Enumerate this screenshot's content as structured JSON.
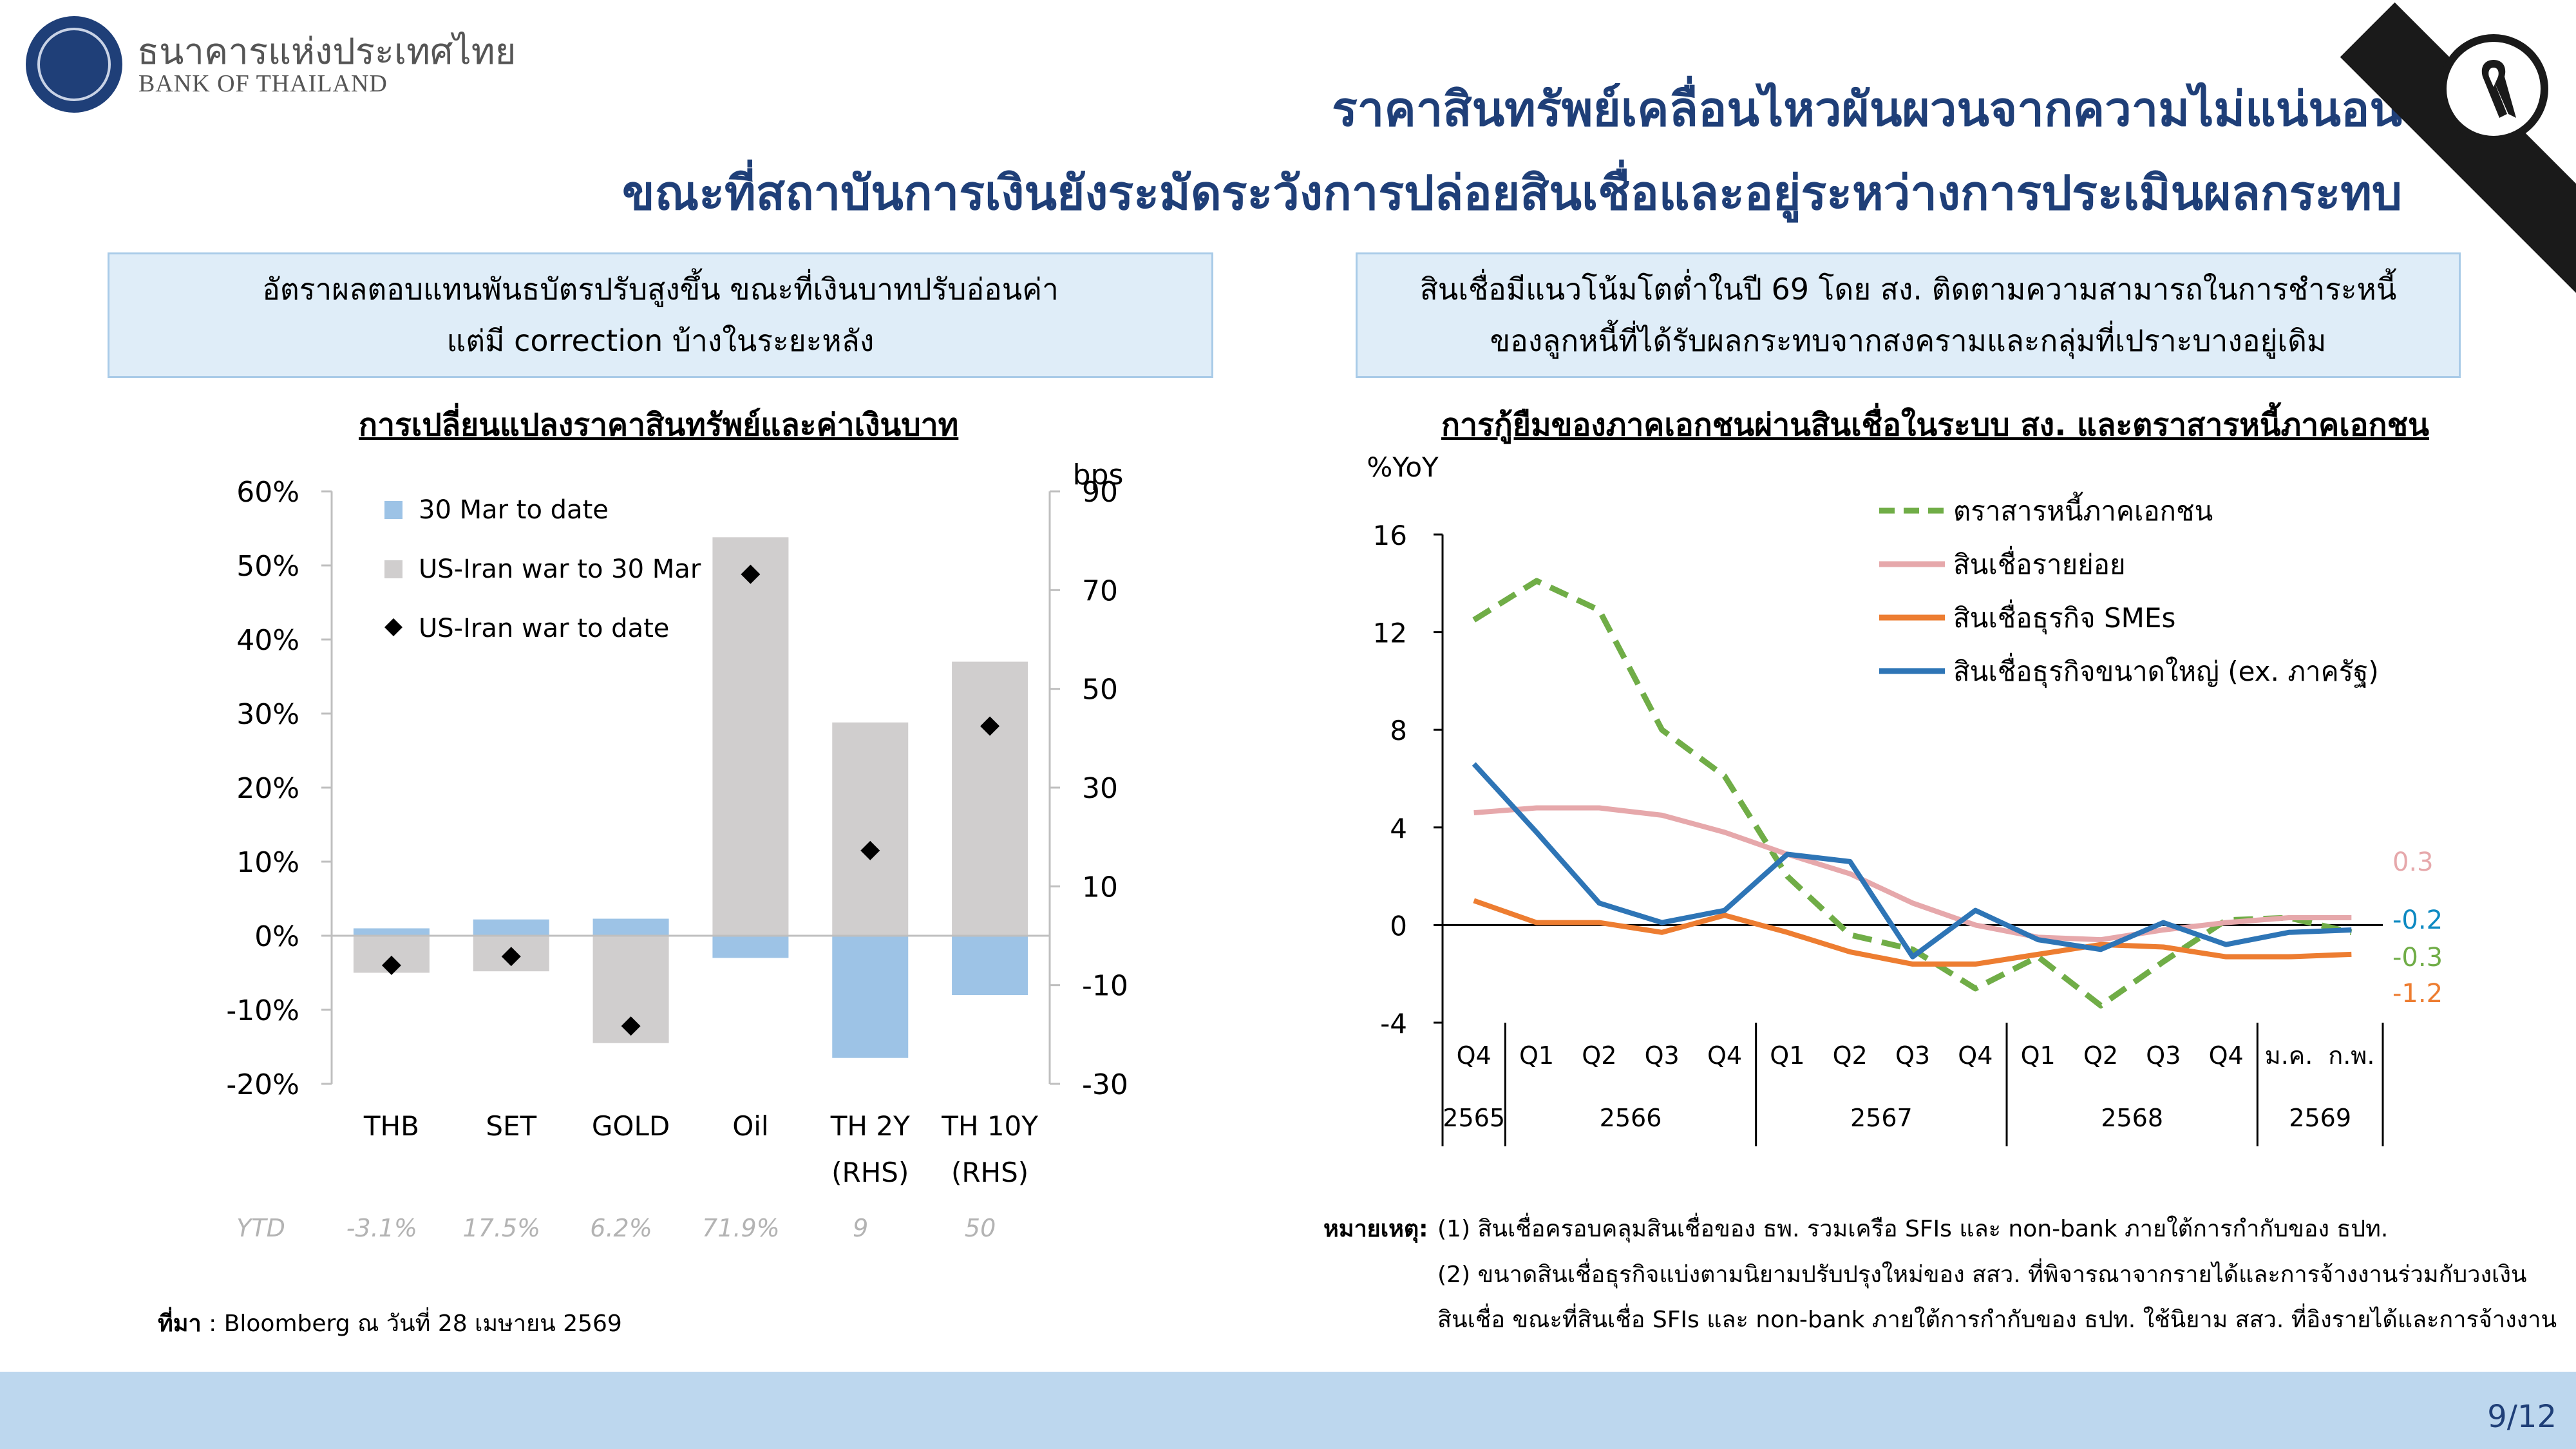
{
  "header": {
    "brand_th": "ธนาคารแห่งประเทศไทย",
    "brand_en": "BANK OF THAILAND",
    "title_line1": "ราคาสินทรัพย์เคลื่อนไหวผันผวนจากความไม่แน่นอน",
    "title_line2": "ขณะที่สถาบันการเงินยังระมัดระวังการปล่อยสินเชื่อและอยู่ระหว่างการประเมินผลกระทบ"
  },
  "left_panel": {
    "box_line1": "อัตราผลตอบแทนพันธบัตรปรับสูงขึ้น ขณะที่เงินบาทปรับอ่อนค่า",
    "box_line2": "แต่มี correction บ้างในระยะหลัง",
    "chart_title": "การเปลี่ยนแปลงราคาสินทรัพย์และค่าเงินบาท",
    "source_label": "ที่มา",
    "source_text": " : Bloomberg ณ วันที่ 28 เมษายน 2569"
  },
  "right_panel": {
    "box_line1": "สินเชื่อมีแนวโน้มโตต่ำในปี 69 โดย สง. ติดตามความสามารถในการชำระหนี้",
    "box_line2": "ของลูกหนี้ที่ได้รับผลกระทบจากสงครามและกลุ่มที่เปราะบางอยู่เดิม",
    "chart_title": "การกู้ยืมของภาคเอกชนผ่านสินเชื่อในระบบ สง. และตราสารหนี้ภาคเอกชน",
    "note_label": "หมายเหตุ:",
    "note1": "(1) สินเชื่อครอบคลุมสินเชื่อของ ธพ. รวมเครือ SFIs และ non-bank ภายใต้การกำกับของ ธปท.",
    "note2": "(2) ขนาดสินเชื่อธุรกิจแบ่งตามนิยามปรับปรุงใหม่ของ สสว. ที่พิจารณาจากรายได้และการจ้างงานร่วมกับวงเงิน",
    "note3": "สินเชื่อ ขณะที่สินเชื่อ SFIs และ non-bank ภายใต้การกำกับของ ธปท. ใช้นิยาม สสว. ที่อิงรายได้และการจ้างงาน"
  },
  "footer": {
    "page": "9/12"
  },
  "colors": {
    "navy": "#1f3f78",
    "bar_blue": "#9dc3e6",
    "bar_gray": "#d0cece",
    "green": "#70ad47",
    "pink": "#e6a8ab",
    "orange": "#ed7d31",
    "blue": "#2e75b6",
    "teal": "#0e8ac2",
    "box_fill": "#dfedf8",
    "footer_fill": "#bdd7ee"
  },
  "chart_data": [
    {
      "type": "bar",
      "categories": [
        "THB",
        "SET",
        "GOLD",
        "Oil",
        "TH 2Y",
        "TH 10Y"
      ],
      "category_sublabels": [
        "",
        "",
        "",
        "",
        "(RHS)",
        "(RHS)"
      ],
      "ylim_left": [
        -0.2,
        0.6
      ],
      "yticks_left": [
        "60%",
        "50%",
        "40%",
        "30%",
        "20%",
        "10%",
        "0%",
        "-10%",
        "-20%"
      ],
      "ylim_right": [
        -30,
        90
      ],
      "yticks_right": [
        "90",
        "70",
        "50",
        "30",
        "10",
        "-10",
        "-30"
      ],
      "ylabel_right": "bps",
      "series": [
        {
          "name": "30 Mar to date",
          "kind": "bar",
          "color": "#9dc3e6",
          "values": [
            0.01,
            0.022,
            0.023,
            -0.03,
            -0.165,
            -0.08
          ]
        },
        {
          "name": "US-Iran war to 30 Mar",
          "kind": "bar",
          "color": "#d0cece",
          "values": [
            -0.05,
            -0.048,
            -0.145,
            0.538,
            0.288,
            0.37
          ]
        },
        {
          "name": "US-Iran war to date",
          "kind": "marker",
          "color": "#000000",
          "values": [
            -0.04,
            -0.028,
            -0.122,
            0.488,
            0.115,
            0.283
          ]
        }
      ],
      "ytd_label": "YTD",
      "ytd_values": [
        "-3.1%",
        "17.5%",
        "6.2%",
        "71.9%",
        "9",
        "50"
      ],
      "legend_position": "top-left"
    },
    {
      "type": "line",
      "ylabel": "%YoY",
      "ylim": [
        -4,
        16
      ],
      "yticks": [
        "16",
        "12",
        "8",
        "4",
        "0",
        "-4"
      ],
      "x_labels": [
        "Q4",
        "Q1",
        "Q2",
        "Q3",
        "Q4",
        "Q1",
        "Q2",
        "Q3",
        "Q4",
        "Q1",
        "Q2",
        "Q3",
        "Q4",
        "ม.ค.",
        "ก.พ."
      ],
      "year_groups": [
        {
          "label": "2565",
          "span": 1
        },
        {
          "label": "2566",
          "span": 4
        },
        {
          "label": "2567",
          "span": 4
        },
        {
          "label": "2568",
          "span": 4
        },
        {
          "label": "2569",
          "span": 2
        }
      ],
      "series": [
        {
          "name": "ตราสารหนี้ภาคเอกชน",
          "color": "#70ad47",
          "dash": true,
          "values": [
            12.5,
            14.1,
            12.9,
            8.0,
            6.1,
            2.0,
            -0.4,
            -1.0,
            -2.6,
            -1.3,
            -3.3,
            -1.5,
            0.2,
            0.3,
            -0.3
          ]
        },
        {
          "name": "สินเชื่อรายย่อย",
          "color": "#e6a8ab",
          "dash": false,
          "values": [
            4.6,
            4.8,
            4.8,
            4.5,
            3.8,
            2.9,
            2.1,
            0.9,
            0.0,
            -0.5,
            -0.6,
            -0.2,
            0.1,
            0.3,
            0.3
          ]
        },
        {
          "name": "สินเชื่อธุรกิจ SMEs",
          "color": "#ed7d31",
          "dash": false,
          "values": [
            1.0,
            0.1,
            0.1,
            -0.3,
            0.4,
            -0.3,
            -1.1,
            -1.6,
            -1.6,
            -1.2,
            -0.8,
            -0.9,
            -1.3,
            -1.3,
            -1.2
          ]
        },
        {
          "name": "สินเชื่อธุรกิจขนาดใหญ่ (ex. ภาครัฐ)",
          "color": "#2e75b6",
          "dash": false,
          "values": [
            6.6,
            3.8,
            0.9,
            0.1,
            0.6,
            2.9,
            2.6,
            -1.3,
            0.6,
            -0.6,
            -1.0,
            0.1,
            -0.8,
            -0.3,
            -0.2
          ]
        }
      ],
      "end_labels": [
        {
          "text": "0.3",
          "color": "#e6a8ab"
        },
        {
          "text": "-0.2",
          "color": "#0e8ac2"
        },
        {
          "text": "-0.3",
          "color": "#70ad47"
        },
        {
          "text": "-1.2",
          "color": "#ed7d31"
        }
      ],
      "legend_position": "top-right"
    }
  ]
}
